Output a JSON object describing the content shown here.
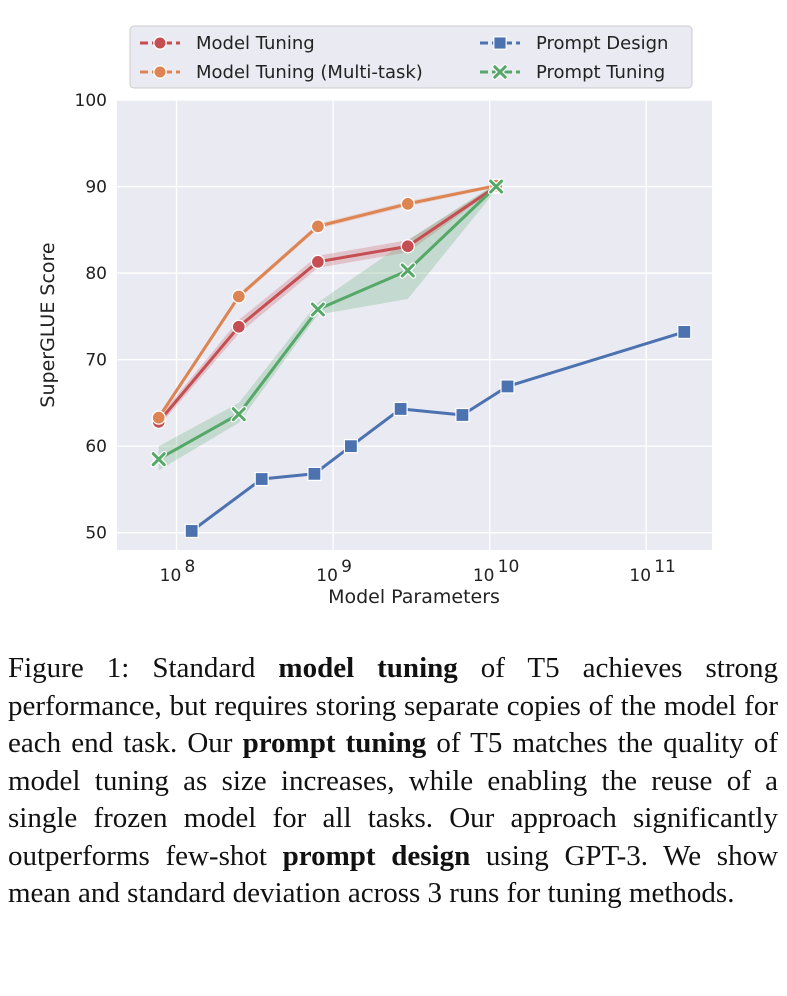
{
  "chart_data": {
    "type": "line",
    "xscale": "log",
    "xlabel": "Model Parameters",
    "ylabel": "SuperGLUE Score",
    "ylim": [
      48,
      100
    ],
    "xlim_log10": [
      7.62,
      11.42
    ],
    "grid": true,
    "legend_position": "top",
    "yticks": [
      50,
      60,
      70,
      80,
      90,
      100
    ],
    "xticks": [
      {
        "exp": 8,
        "base": "10",
        "sup": "8"
      },
      {
        "exp": 9,
        "base": "10",
        "sup": "9"
      },
      {
        "exp": 10,
        "base": "10",
        "sup": "10"
      },
      {
        "exp": 11,
        "base": "10",
        "sup": "11"
      }
    ],
    "series": [
      {
        "name": "Model Tuning",
        "color": "#c44e52",
        "marker": "circle",
        "x": [
          77000000,
          250000000,
          800000000,
          3000000000,
          11000000000
        ],
        "y": [
          62.8,
          73.8,
          81.3,
          83.1,
          90.0
        ],
        "y_lower": [
          62.3,
          73.0,
          80.6,
          82.4,
          89.8
        ],
        "y_upper": [
          63.3,
          74.6,
          82.0,
          83.8,
          90.2
        ]
      },
      {
        "name": "Model Tuning (Multi-task)",
        "color": "#dd8452",
        "marker": "circle",
        "x": [
          77000000,
          250000000,
          800000000,
          3000000000,
          11000000000
        ],
        "y": [
          63.3,
          77.3,
          85.4,
          88.0,
          90.1
        ],
        "y_lower": [
          63.0,
          77.0,
          85.1,
          87.7,
          89.9
        ],
        "y_upper": [
          63.6,
          77.6,
          85.7,
          88.3,
          90.3
        ]
      },
      {
        "name": "Prompt Design",
        "color": "#4c72b0",
        "marker": "square",
        "x": [
          125000000,
          350000000,
          760000000,
          1300000000,
          2700000000,
          6700000000,
          13000000000,
          175000000000
        ],
        "y": [
          50.2,
          56.2,
          56.8,
          60.0,
          64.3,
          63.6,
          66.9,
          73.2
        ]
      },
      {
        "name": "Prompt Tuning",
        "color": "#55a868",
        "marker": "x",
        "x": [
          77000000,
          250000000,
          800000000,
          3000000000,
          11000000000
        ],
        "y": [
          58.5,
          63.7,
          75.8,
          80.3,
          90.0
        ],
        "y_lower": [
          57.2,
          62.7,
          75.2,
          77.0,
          89.6
        ],
        "y_upper": [
          60.0,
          65.0,
          76.6,
          83.8,
          90.4
        ]
      }
    ]
  },
  "caption": {
    "label": "Figure 1:",
    "s1": "Standard",
    "b1": "model tuning",
    "s2": "of T5 achieves strong performance, but requires storing separate copies of the model for each end task.  Our",
    "b2": "prompt tuning",
    "s3": "of T5 matches the quality of model tuning as size increases, while enabling the reuse of a single frozen model for all tasks. Our approach significantly outperforms few-shot",
    "b3": "prompt design",
    "s4": "using GPT-3. We show mean and standard deviation across 3 runs for tuning methods."
  }
}
